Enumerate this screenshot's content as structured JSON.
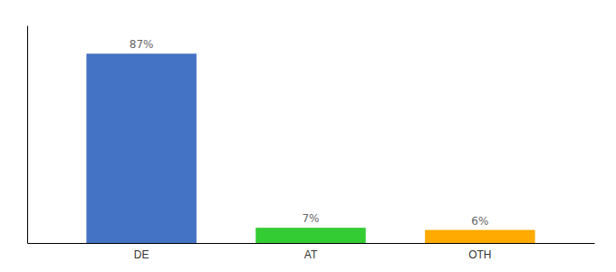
{
  "chart_data": {
    "type": "bar",
    "categories": [
      "DE",
      "AT",
      "OTH"
    ],
    "values": [
      87,
      7,
      6
    ],
    "value_labels": [
      "87%",
      "7%",
      "6%"
    ],
    "colors": [
      "#4472c4",
      "#33cc33",
      "#ffaa00"
    ],
    "ylim": [
      0,
      100
    ],
    "grid": false,
    "data_labels": true,
    "tick_labels": "x"
  }
}
